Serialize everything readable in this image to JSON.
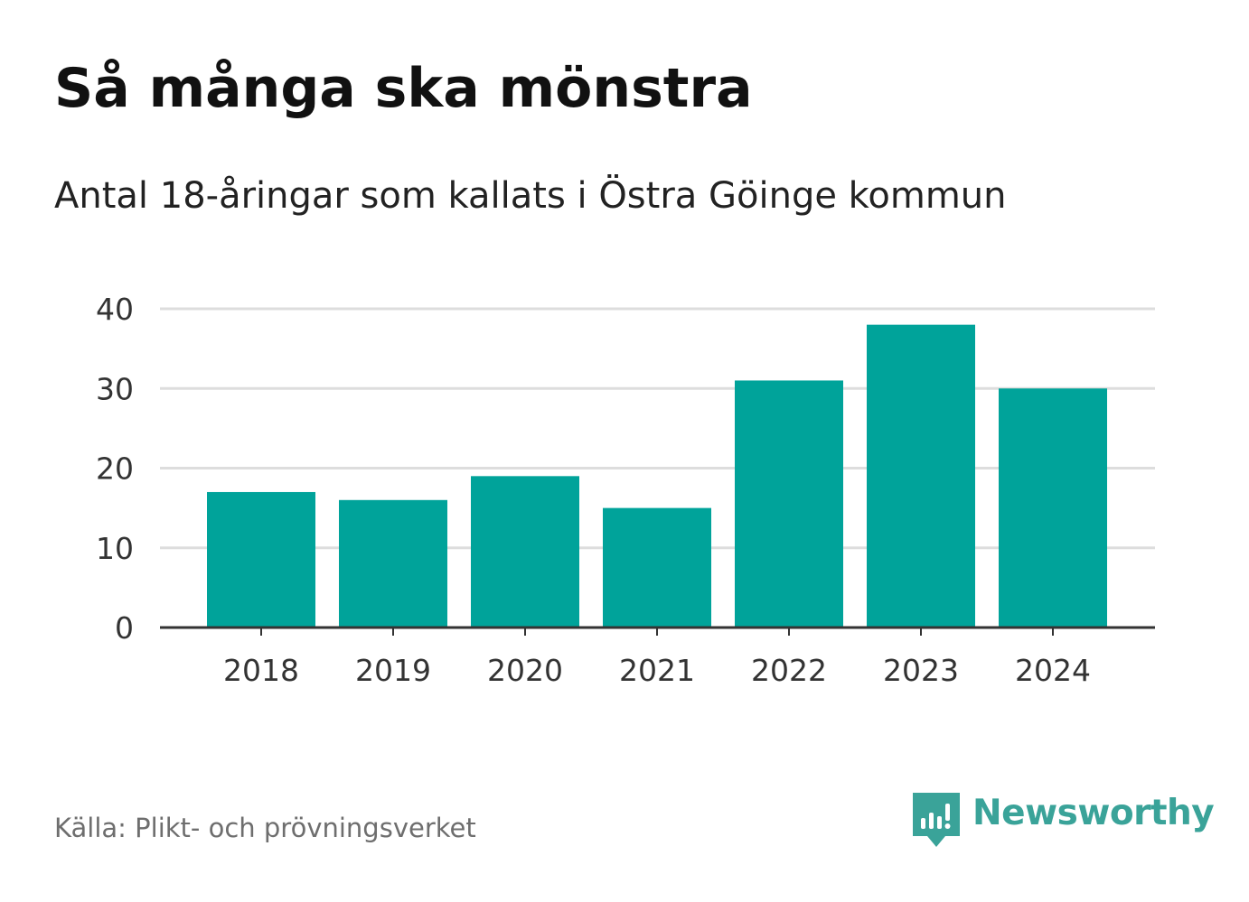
{
  "chart_data": {
    "type": "bar",
    "title": "Så många ska mönstra",
    "subtitle": "Antal 18-åringar som kallats i Östra Göinge kommun",
    "categories": [
      "2018",
      "2019",
      "2020",
      "2021",
      "2022",
      "2023",
      "2024"
    ],
    "values": [
      17,
      16,
      19,
      15,
      31,
      38,
      30
    ],
    "ylim": [
      0,
      40
    ],
    "yticks": [
      "0",
      "10",
      "20",
      "30",
      "40"
    ],
    "grid": true,
    "bar_color": "#00a39a",
    "grid_color": "#dddddd",
    "axis_color": "#333333"
  },
  "footer": {
    "source": "Källa: Plikt- och prövningsverket",
    "brand": "Newsworthy",
    "brand_icon": "newsworthy-logo-icon",
    "brand_color": "#3aa399"
  }
}
